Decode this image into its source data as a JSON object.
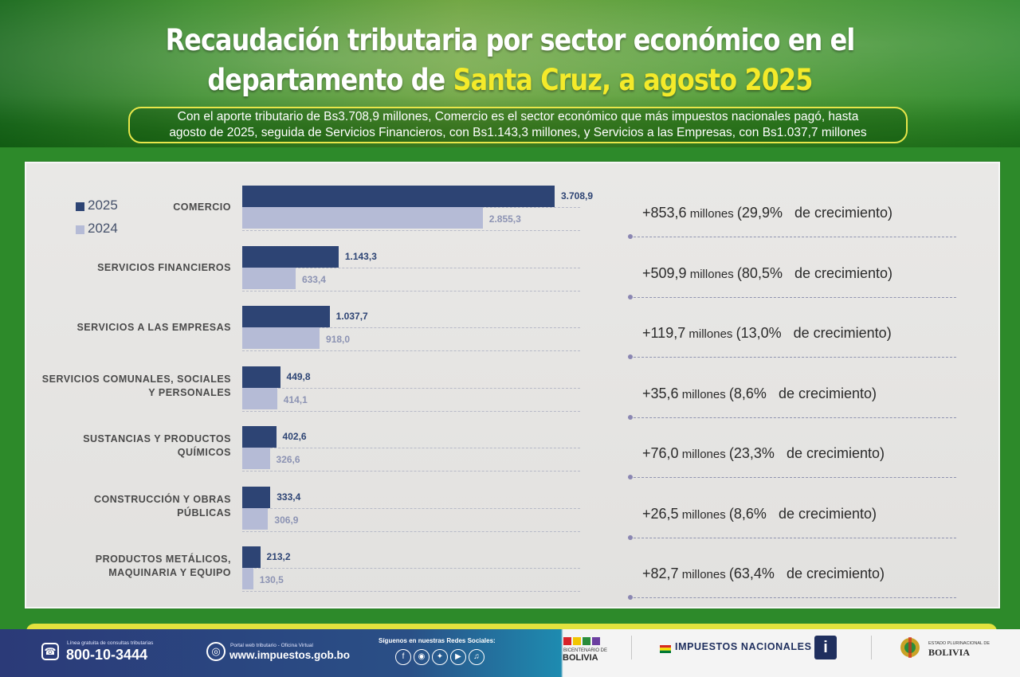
{
  "header": {
    "title_line1": "Recaudación tributaria por sector económico en el",
    "title_line2_prefix": "departamento de ",
    "title_line2_highlight": "Santa Cruz, a agosto 2025",
    "subtitle_line1": "Con el aporte tributario de Bs3.708,9 millones, Comercio es el sector económico que más impuestos nacionales pagó, hasta",
    "subtitle_line2": "agosto de 2025, seguida de Servicios Financieros, con Bs1.143,3 millones, y Servicios a las Empresas, con Bs1.037,7 millones"
  },
  "chart_data": {
    "type": "bar",
    "orientation": "horizontal",
    "legend": [
      {
        "label": "2025",
        "color": "#2d4474"
      },
      {
        "label": "2024",
        "color": "#b5bbd6"
      }
    ],
    "categories": [
      [
        "COMERCIO"
      ],
      [
        "SERVICIOS FINANCIEROS"
      ],
      [
        "SERVICIOS A LAS EMPRESAS"
      ],
      [
        "SERVICIOS COMUNALES, SOCIALES",
        "Y PERSONALES"
      ],
      [
        "SUSTANCIAS Y PRODUCTOS",
        "QUÍMICOS"
      ],
      [
        "CONSTRUCCIÓN Y OBRAS",
        "PÚBLICAS"
      ],
      [
        "PRODUCTOS METÁLICOS,",
        "MAQUINARIA Y EQUIPO"
      ]
    ],
    "series": [
      {
        "name": "2025",
        "values": [
          3708.9,
          1143.3,
          1037.7,
          449.8,
          402.6,
          333.4,
          213.2
        ],
        "labels": [
          "3.708,9",
          "1.143,3",
          "1.037,7",
          "449,8",
          "402,6",
          "333,4",
          "213,2"
        ]
      },
      {
        "name": "2024",
        "values": [
          2855.3,
          633.4,
          918.0,
          414.1,
          326.6,
          306.9,
          130.5
        ],
        "labels": [
          "2.855,3",
          "633,4",
          "918,0",
          "414,1",
          "326,6",
          "306,9",
          "130,5"
        ]
      }
    ],
    "growth": [
      {
        "amount": "+853,6",
        "unit": "millones",
        "pct": "(29,9%",
        "suffix": "de crecimiento)"
      },
      {
        "amount": "+509,9",
        "unit": "millones",
        "pct": "(80,5%",
        "suffix": "de crecimiento)"
      },
      {
        "amount": "+119,7",
        "unit": "millones",
        "pct": "(13,0%",
        "suffix": "de crecimiento)"
      },
      {
        "amount": "+35,6",
        "unit": "millones",
        "pct": "(8,6%",
        "suffix": "de crecimiento)"
      },
      {
        "amount": "+76,0",
        "unit": "millones",
        "pct": "(23,3%",
        "suffix": "de crecimiento)"
      },
      {
        "amount": "+26,5",
        "unit": "millones",
        "pct": "(8,6%",
        "suffix": "de crecimiento)"
      },
      {
        "amount": "+82,7",
        "unit": "millones",
        "pct": "(63,4%",
        "suffix": "de crecimiento)"
      }
    ],
    "unit": "millones de Bs"
  },
  "footer": {
    "phone_caption": "Línea gratuita de consultas tributarias",
    "phone": "800-10-3444",
    "web_caption": "Portal web tributario - Oficina Virtual",
    "web": "www.impuestos.gob.bo",
    "social_caption": "Síguenos en nuestras Redes Sociales:",
    "bicentenario_caption": "BICENTENARIO DE",
    "bicentenario": "BOLIVIA",
    "impuestos": "IMPUESTOS NACIONALES",
    "estado_caption": "ESTADO PLURINACIONAL DE",
    "estado": "BOLIVIA"
  }
}
